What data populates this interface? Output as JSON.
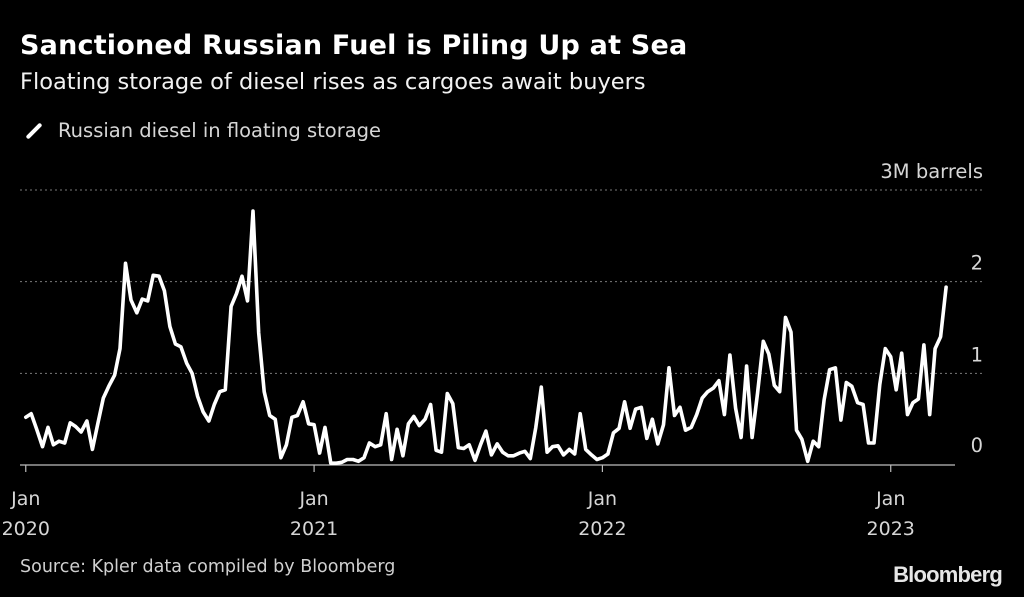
{
  "chart_data": {
    "type": "line",
    "title": "Sanctioned Russian Fuel is Piling Up at Sea",
    "subtitle": "Floating storage of diesel rises as cargoes await buyers",
    "legend": [
      "Russian diesel in floating storage"
    ],
    "unit_label": "3M barrels",
    "ylim": [
      0,
      3
    ],
    "y_ticks": [
      {
        "value": 0,
        "label": "0"
      },
      {
        "value": 1,
        "label": "1"
      },
      {
        "value": 2,
        "label": "2"
      },
      {
        "value": 3,
        "label": "3M barrels"
      }
    ],
    "x_ticks": [
      {
        "value": 2020,
        "month": "Jan",
        "year": "2020"
      },
      {
        "value": 2021,
        "month": "Jan",
        "year": "2021"
      },
      {
        "value": 2022,
        "month": "Jan",
        "year": "2022"
      },
      {
        "value": 2023,
        "month": "Jan",
        "year": "2023"
      }
    ],
    "xlim": [
      2019.98,
      2023.32
    ],
    "series": [
      {
        "name": "Russian diesel in floating storage",
        "color": "#ffffff",
        "points": [
          [
            2020.0,
            0.52
          ],
          [
            2020.019,
            0.56
          ],
          [
            2020.038,
            0.39
          ],
          [
            2020.058,
            0.2
          ],
          [
            2020.077,
            0.41
          ],
          [
            2020.096,
            0.22
          ],
          [
            2020.115,
            0.26
          ],
          [
            2020.135,
            0.24
          ],
          [
            2020.154,
            0.46
          ],
          [
            2020.173,
            0.42
          ],
          [
            2020.192,
            0.36
          ],
          [
            2020.212,
            0.48
          ],
          [
            2020.231,
            0.17
          ],
          [
            2020.25,
            0.45
          ],
          [
            2020.269,
            0.73
          ],
          [
            2020.288,
            0.86
          ],
          [
            2020.308,
            0.98
          ],
          [
            2020.327,
            1.27
          ],
          [
            2020.346,
            2.2
          ],
          [
            2020.365,
            1.8
          ],
          [
            2020.385,
            1.66
          ],
          [
            2020.404,
            1.81
          ],
          [
            2020.423,
            1.79
          ],
          [
            2020.442,
            2.07
          ],
          [
            2020.462,
            2.06
          ],
          [
            2020.481,
            1.9
          ],
          [
            2020.5,
            1.51
          ],
          [
            2020.519,
            1.32
          ],
          [
            2020.538,
            1.29
          ],
          [
            2020.558,
            1.11
          ],
          [
            2020.577,
            1.0
          ],
          [
            2020.596,
            0.75
          ],
          [
            2020.615,
            0.58
          ],
          [
            2020.635,
            0.48
          ],
          [
            2020.654,
            0.66
          ],
          [
            2020.673,
            0.8
          ],
          [
            2020.692,
            0.82
          ],
          [
            2020.712,
            1.73
          ],
          [
            2020.731,
            1.87
          ],
          [
            2020.75,
            2.06
          ],
          [
            2020.769,
            1.79
          ],
          [
            2020.788,
            2.77
          ],
          [
            2020.808,
            1.44
          ],
          [
            2020.827,
            0.8
          ],
          [
            2020.846,
            0.54
          ],
          [
            2020.865,
            0.5
          ],
          [
            2020.885,
            0.08
          ],
          [
            2020.904,
            0.22
          ],
          [
            2020.923,
            0.52
          ],
          [
            2020.942,
            0.54
          ],
          [
            2020.962,
            0.69
          ],
          [
            2020.981,
            0.45
          ],
          [
            2021.0,
            0.44
          ],
          [
            2021.019,
            0.13
          ],
          [
            2021.038,
            0.41
          ],
          [
            2021.058,
            0.02
          ],
          [
            2021.077,
            0.02
          ],
          [
            2021.096,
            0.03
          ],
          [
            2021.115,
            0.06
          ],
          [
            2021.135,
            0.06
          ],
          [
            2021.154,
            0.04
          ],
          [
            2021.173,
            0.08
          ],
          [
            2021.192,
            0.24
          ],
          [
            2021.212,
            0.2
          ],
          [
            2021.231,
            0.22
          ],
          [
            2021.25,
            0.56
          ],
          [
            2021.269,
            0.06
          ],
          [
            2021.288,
            0.39
          ],
          [
            2021.308,
            0.1
          ],
          [
            2021.327,
            0.45
          ],
          [
            2021.346,
            0.53
          ],
          [
            2021.365,
            0.43
          ],
          [
            2021.385,
            0.5
          ],
          [
            2021.404,
            0.66
          ],
          [
            2021.423,
            0.16
          ],
          [
            2021.442,
            0.14
          ],
          [
            2021.462,
            0.78
          ],
          [
            2021.481,
            0.67
          ],
          [
            2021.5,
            0.19
          ],
          [
            2021.519,
            0.18
          ],
          [
            2021.538,
            0.22
          ],
          [
            2021.558,
            0.05
          ],
          [
            2021.577,
            0.22
          ],
          [
            2021.596,
            0.37
          ],
          [
            2021.615,
            0.11
          ],
          [
            2021.635,
            0.23
          ],
          [
            2021.654,
            0.14
          ],
          [
            2021.673,
            0.1
          ],
          [
            2021.692,
            0.1
          ],
          [
            2021.712,
            0.13
          ],
          [
            2021.731,
            0.15
          ],
          [
            2021.75,
            0.07
          ],
          [
            2021.769,
            0.41
          ],
          [
            2021.788,
            0.85
          ],
          [
            2021.808,
            0.14
          ],
          [
            2021.827,
            0.2
          ],
          [
            2021.846,
            0.21
          ],
          [
            2021.865,
            0.11
          ],
          [
            2021.885,
            0.17
          ],
          [
            2021.904,
            0.12
          ],
          [
            2021.923,
            0.56
          ],
          [
            2021.942,
            0.17
          ],
          [
            2021.962,
            0.11
          ],
          [
            2021.981,
            0.06
          ],
          [
            2022.0,
            0.08
          ],
          [
            2022.019,
            0.12
          ],
          [
            2022.038,
            0.35
          ],
          [
            2022.058,
            0.4
          ],
          [
            2022.077,
            0.69
          ],
          [
            2022.096,
            0.4
          ],
          [
            2022.115,
            0.61
          ],
          [
            2022.135,
            0.63
          ],
          [
            2022.154,
            0.29
          ],
          [
            2022.173,
            0.5
          ],
          [
            2022.192,
            0.23
          ],
          [
            2022.212,
            0.44
          ],
          [
            2022.231,
            1.06
          ],
          [
            2022.25,
            0.54
          ],
          [
            2022.269,
            0.63
          ],
          [
            2022.288,
            0.38
          ],
          [
            2022.308,
            0.41
          ],
          [
            2022.327,
            0.55
          ],
          [
            2022.346,
            0.73
          ],
          [
            2022.365,
            0.8
          ],
          [
            2022.385,
            0.84
          ],
          [
            2022.404,
            0.92
          ],
          [
            2022.423,
            0.55
          ],
          [
            2022.442,
            1.2
          ],
          [
            2022.462,
            0.62
          ],
          [
            2022.481,
            0.3
          ],
          [
            2022.5,
            1.08
          ],
          [
            2022.519,
            0.3
          ],
          [
            2022.538,
            0.78
          ],
          [
            2022.558,
            1.35
          ],
          [
            2022.577,
            1.21
          ],
          [
            2022.596,
            0.87
          ],
          [
            2022.615,
            0.8
          ],
          [
            2022.635,
            1.61
          ],
          [
            2022.654,
            1.45
          ],
          [
            2022.673,
            0.38
          ],
          [
            2022.692,
            0.28
          ],
          [
            2022.712,
            0.04
          ],
          [
            2022.731,
            0.26
          ],
          [
            2022.75,
            0.2
          ],
          [
            2022.769,
            0.71
          ],
          [
            2022.788,
            1.04
          ],
          [
            2022.808,
            1.06
          ],
          [
            2022.827,
            0.49
          ],
          [
            2022.846,
            0.9
          ],
          [
            2022.865,
            0.86
          ],
          [
            2022.885,
            0.68
          ],
          [
            2022.904,
            0.66
          ],
          [
            2022.923,
            0.24
          ],
          [
            2022.942,
            0.24
          ],
          [
            2022.962,
            0.88
          ],
          [
            2022.981,
            1.27
          ],
          [
            2023.0,
            1.18
          ],
          [
            2023.019,
            0.82
          ],
          [
            2023.038,
            1.22
          ],
          [
            2023.058,
            0.55
          ],
          [
            2023.077,
            0.68
          ],
          [
            2023.096,
            0.72
          ],
          [
            2023.115,
            1.31
          ],
          [
            2023.135,
            0.55
          ],
          [
            2023.154,
            1.27
          ],
          [
            2023.173,
            1.4
          ],
          [
            2023.192,
            1.94
          ]
        ]
      }
    ]
  },
  "footer": {
    "source": "Source: Kpler data compiled by Bloomberg",
    "brand": "Bloomberg"
  },
  "colors": {
    "background": "#000000",
    "line": "#ffffff",
    "grid": "#7a7a7a",
    "text_muted": "#d6d6d6"
  }
}
